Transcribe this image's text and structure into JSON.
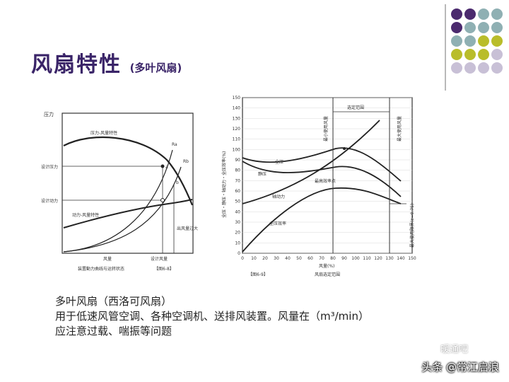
{
  "slide": {
    "title": "风扇特性",
    "subtitle": "(多叶风扇)",
    "dot_colors": [
      "#4b2a6e",
      "#8fb0b3",
      "#b9bd2a",
      "#c8c0d6"
    ]
  },
  "left_chart": {
    "y_axis_label": "压力",
    "label_pressure_flow": "压力-风量特性",
    "label_design_pressure": "设计压力",
    "label_design_power": "设计动力",
    "label_power_flow": "动力-风量特性",
    "label_excess_air": "出风量过大",
    "x_axis_label": "风量",
    "label_design_flow": "设计风量",
    "caption": "装置動力曲线与运转状态",
    "fig_label": "【图6-8】",
    "curve_tags": [
      "Ra",
      "Rb",
      "a",
      "b"
    ]
  },
  "right_chart": {
    "y_axis_label": "全压・静压・轴动力・全压效率(%)",
    "y_ticks": [
      "0",
      "10",
      "20",
      "30",
      "40",
      "50",
      "60",
      "70",
      "80",
      "90",
      "100",
      "110",
      "120",
      "130",
      "140",
      "150"
    ],
    "x_ticks": [
      "0",
      "10",
      "20",
      "30",
      "40",
      "50",
      "60",
      "70",
      "80",
      "90",
      "100",
      "110",
      "120",
      "130",
      "140",
      "150"
    ],
    "x_axis_label": "风量(%)",
    "curve_total_pressure": "全压",
    "curve_static_pressure": "静压",
    "curve_shaft_power": "轴动力",
    "curve_efficiency": "全压效率",
    "label_max_efficiency": "最高效率点",
    "label_min_flow": "最小使用风量",
    "label_range": "选定范围",
    "label_max_flow": "最大使用风量",
    "label_max_usage_limit": "最大使用限界(ε=0.75)",
    "caption": "风扇选定范围",
    "fig_label": "【图6-9】"
  },
  "caption_lines": [
    "多叶风扇（西洛可风扇）",
    "用于低速风管空调、各种空调机、送排风装置。风量在（m³/min）",
    "应注意过载、喘振等问题"
  ],
  "watermark": {
    "text": "头条 @常江启浪",
    "faint": "暖通吧"
  }
}
